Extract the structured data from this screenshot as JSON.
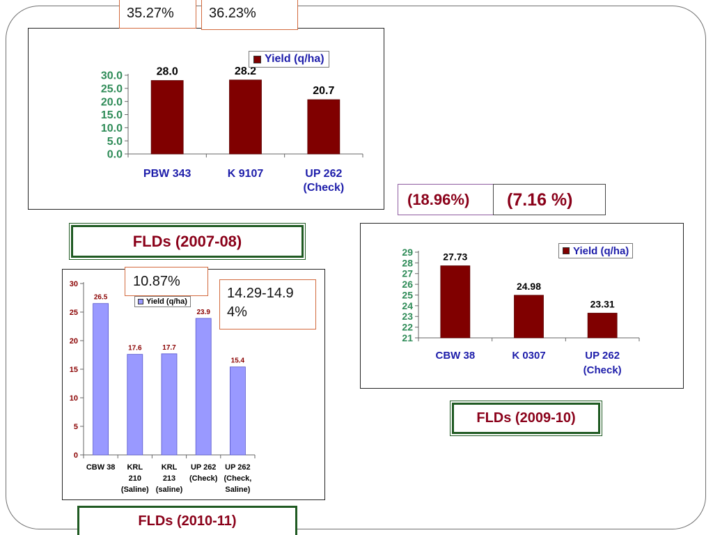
{
  "chart_data": [
    {
      "type": "bar",
      "categories": [
        "PBW 343",
        "K 9107",
        "UP 262 (Check)"
      ],
      "series": [
        {
          "name": "Yield (q/ha)",
          "values": [
            28.0,
            28.2,
            20.7
          ]
        }
      ],
      "value_labels": [
        "28.0",
        "28.2",
        "20.7"
      ],
      "yticks": [
        "0.0",
        "5.0",
        "10.0",
        "15.0",
        "20.0",
        "25.0",
        "30.0"
      ],
      "ylim": [
        0,
        30
      ],
      "title": "",
      "xlabel": "",
      "ylabel": "",
      "grid": false,
      "legend": "top-right",
      "colors": {
        "bar": "#800000",
        "tick": "#2e8b57",
        "category": "#1d1daa"
      }
    },
    {
      "type": "bar",
      "categories": [
        "CBW 38",
        "K 0307",
        "UP 262 (Check)"
      ],
      "series": [
        {
          "name": "Yield (q/ha)",
          "values": [
            27.73,
            24.98,
            23.31
          ]
        }
      ],
      "value_labels": [
        "27.73",
        "24.98",
        "23.31"
      ],
      "yticks": [
        "21",
        "22",
        "23",
        "24",
        "25",
        "26",
        "27",
        "28",
        "29"
      ],
      "ylim": [
        21,
        29
      ],
      "title": "",
      "xlabel": "",
      "ylabel": "",
      "grid": false,
      "legend": "top-right",
      "colors": {
        "bar": "#800000",
        "tick": "#2e8b57",
        "category": "#1d1daa"
      }
    },
    {
      "type": "bar",
      "categories": [
        "CBW 38",
        "KRL 210 (Saline)",
        "KRL 213 (saline)",
        "UP 262 (Check)",
        "UP 262 (Check, Saline)"
      ],
      "series": [
        {
          "name": "Yield (q/ha)",
          "values": [
            26.5,
            17.6,
            17.7,
            23.9,
            15.4
          ]
        }
      ],
      "value_labels": [
        "26.5",
        "17.6",
        "17.7",
        "23.9",
        "15.4"
      ],
      "yticks": [
        "0",
        "5",
        "10",
        "15",
        "20",
        "25",
        "30"
      ],
      "ylim": [
        0,
        30
      ],
      "title": "",
      "xlabel": "",
      "ylabel": "",
      "grid": false,
      "legend": "top-right",
      "colors": {
        "bar": "#9999ff",
        "tick": "#8a0000",
        "category": "#000000"
      }
    }
  ],
  "annotations": {
    "pct_2007_a": "35.27%",
    "pct_2007_b": "36.23%",
    "pct_2009_a": "(18.96%)",
    "pct_2009_b": "(7.16 %)",
    "pct_2010_a": "10.87%",
    "pct_2010_b": "14.29-14.94%"
  },
  "captions": {
    "flds_2007": "FLDs (2007-08)",
    "flds_2009": "FLDs (2009-10)",
    "flds_2010": "FLDs (2010-11)"
  }
}
